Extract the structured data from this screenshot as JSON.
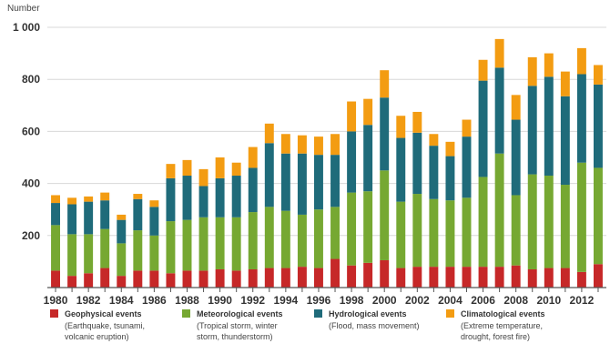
{
  "chart_data": {
    "type": "bar",
    "stacked": true,
    "ylabel": "Number",
    "ylim": [
      0,
      1000
    ],
    "yticks": [
      0,
      200,
      400,
      600,
      800,
      1000
    ],
    "ytick_labels": [
      "",
      "200",
      "400",
      "600",
      "800",
      "1 000"
    ],
    "grid": true,
    "legend_placement": "bottom",
    "categories": [
      "1980",
      "1981",
      "1982",
      "1983",
      "1984",
      "1985",
      "1986",
      "1987",
      "1988",
      "1989",
      "1990",
      "1991",
      "1992",
      "1993",
      "1994",
      "1995",
      "1996",
      "1997",
      "1998",
      "1999",
      "2000",
      "2001",
      "2002",
      "2003",
      "2004",
      "2005",
      "2006",
      "2007",
      "2008",
      "2009",
      "2010",
      "2011",
      "2012",
      "2013"
    ],
    "xtick_labels": [
      "1980",
      "",
      "1982",
      "",
      "1984",
      "",
      "1986",
      "",
      "1988",
      "",
      "1990",
      "",
      "1992",
      "",
      "1994",
      "",
      "1996",
      "",
      "1998",
      "",
      "2000",
      "",
      "2002",
      "",
      "2004",
      "",
      "2006",
      "",
      "2008",
      "",
      "2010",
      "",
      "2012",
      ""
    ],
    "series": [
      {
        "name": "Geophysical events",
        "description": "(Earthquake, tsunami, volcanic eruption)",
        "color": "#c62828",
        "values": [
          65,
          45,
          55,
          75,
          45,
          65,
          65,
          55,
          65,
          65,
          70,
          65,
          70,
          75,
          75,
          80,
          75,
          110,
          85,
          95,
          105,
          75,
          80,
          80,
          80,
          80,
          80,
          80,
          85,
          70,
          75,
          75,
          60,
          90
        ]
      },
      {
        "name": "Meteorological events",
        "description": "(Tropical storm, winter storm, thunderstorm)",
        "color": "#76a832",
        "values": [
          175,
          160,
          150,
          150,
          125,
          155,
          135,
          200,
          195,
          205,
          200,
          205,
          220,
          235,
          220,
          200,
          225,
          200,
          280,
          275,
          345,
          255,
          280,
          260,
          255,
          265,
          345,
          435,
          270,
          365,
          355,
          320,
          420,
          370
        ]
      },
      {
        "name": "Hydrological events",
        "description": "(Flood, mass movement)",
        "color": "#1f6b7a",
        "values": [
          85,
          115,
          125,
          110,
          90,
          120,
          110,
          165,
          170,
          120,
          150,
          160,
          170,
          245,
          220,
          235,
          210,
          200,
          235,
          255,
          280,
          245,
          235,
          205,
          170,
          235,
          370,
          330,
          290,
          340,
          380,
          340,
          340,
          320
        ]
      },
      {
        "name": "Climatological events",
        "description": "(Extreme temperature, drought, forest fire)",
        "color": "#f39c12",
        "values": [
          30,
          25,
          20,
          30,
          20,
          20,
          25,
          55,
          60,
          65,
          80,
          50,
          80,
          75,
          75,
          70,
          70,
          80,
          115,
          100,
          105,
          85,
          80,
          45,
          55,
          65,
          80,
          110,
          95,
          110,
          90,
          95,
          100,
          75
        ]
      }
    ]
  }
}
